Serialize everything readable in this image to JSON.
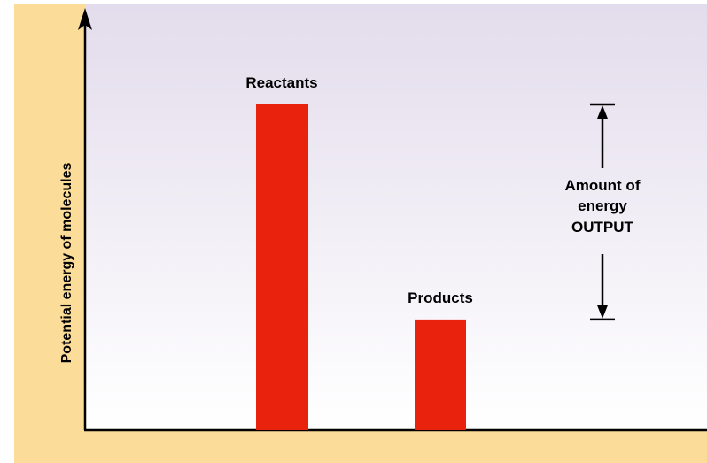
{
  "chart_data": {
    "type": "bar",
    "title": "",
    "xlabel": "",
    "ylabel": "Potential energy of molecules",
    "categories": [
      "Reactants",
      "Products"
    ],
    "values": [
      100,
      34
    ],
    "ylim": [
      0,
      100
    ],
    "bar_color": "#e8220c",
    "annotation": {
      "lines": [
        "Amount of",
        "energy",
        "OUTPUT"
      ],
      "from_category": "Reactants",
      "to_category": "Products"
    },
    "colors": {
      "frame_background": "#fbdc98",
      "plot_top": "#e3dcec",
      "plot_bottom": "#ffffff",
      "axis": "#000000"
    }
  }
}
